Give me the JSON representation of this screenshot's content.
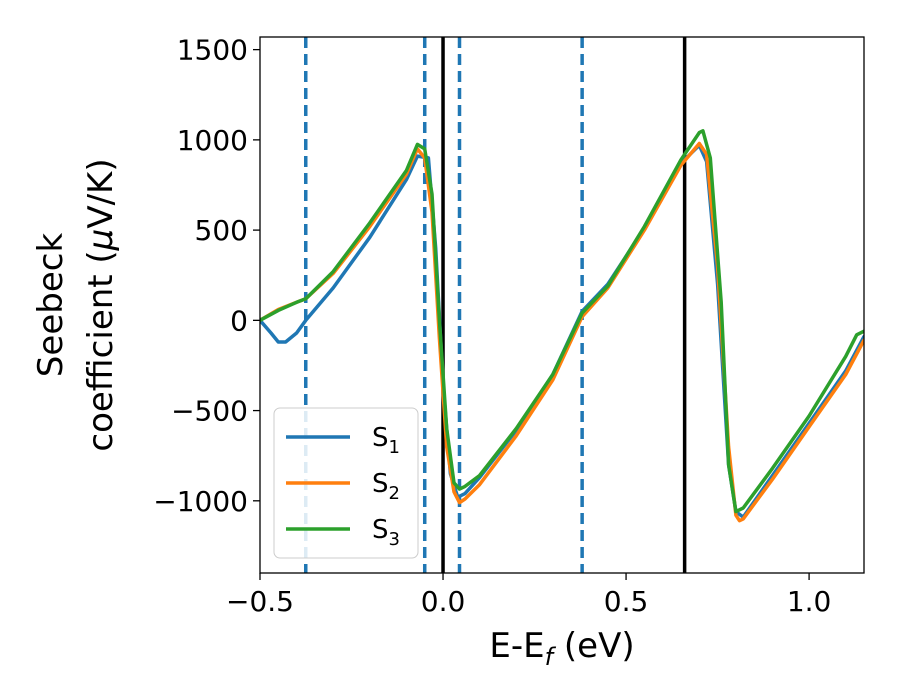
{
  "chart_data": {
    "type": "line",
    "xlabel": "E-E",
    "xlabel_sub": "f",
    "xlabel_unit": " (eV)",
    "ylabel_line1": "Seebeck",
    "ylabel_line2": "coefficient  (",
    "ylabel_mu": "μ",
    "ylabel_unit": "V/K)",
    "xlim": [
      -0.5,
      1.15
    ],
    "ylim": [
      -1400,
      1570
    ],
    "x_ticks": [
      -0.5,
      0.0,
      0.5,
      1.0
    ],
    "x_tick_labels": [
      "−0.5",
      "0.0",
      "0.5",
      "1.0"
    ],
    "y_ticks": [
      -1000,
      -500,
      0,
      500,
      1000,
      1500
    ],
    "y_tick_labels": [
      "−1000",
      "−500",
      "0",
      "500",
      "1000",
      "1500"
    ],
    "grid": false,
    "legend_position": "lower-left",
    "vlines_dashed": {
      "x": [
        -0.375,
        -0.05,
        0.045,
        0.38
      ],
      "color": "#1f77b4"
    },
    "vlines_solid": {
      "x": [
        0.0,
        0.66
      ],
      "color": "#000000"
    },
    "series": [
      {
        "name": "S",
        "sub": "1",
        "color": "#1f77b4",
        "x": [
          -0.5,
          -0.47,
          -0.45,
          -0.43,
          -0.4,
          -0.375,
          -0.3,
          -0.2,
          -0.1,
          -0.07,
          -0.04,
          -0.02,
          0.0,
          0.02,
          0.04,
          0.06,
          0.1,
          0.2,
          0.3,
          0.38,
          0.45,
          0.55,
          0.65,
          0.7,
          0.72,
          0.75,
          0.78,
          0.8,
          0.82,
          0.9,
          1.0,
          1.1,
          1.15
        ],
        "y": [
          0,
          -70,
          -120,
          -120,
          -70,
          0,
          180,
          460,
          780,
          910,
          900,
          400,
          -350,
          -850,
          -980,
          -960,
          -870,
          -610,
          -300,
          50,
          200,
          510,
          870,
          970,
          880,
          200,
          -800,
          -1060,
          -1090,
          -860,
          -570,
          -280,
          -90
        ]
      },
      {
        "name": "S",
        "sub": "2",
        "color": "#ff7f0e",
        "x": [
          -0.5,
          -0.45,
          -0.4,
          -0.375,
          -0.3,
          -0.2,
          -0.1,
          -0.07,
          -0.05,
          -0.03,
          -0.01,
          0.01,
          0.03,
          0.045,
          0.06,
          0.1,
          0.2,
          0.3,
          0.38,
          0.45,
          0.55,
          0.65,
          0.7,
          0.72,
          0.75,
          0.78,
          0.8,
          0.81,
          0.82,
          0.9,
          1.0,
          1.1,
          1.15
        ],
        "y": [
          0,
          60,
          100,
          120,
          260,
          520,
          810,
          950,
          900,
          600,
          -100,
          -700,
          -950,
          -1010,
          -990,
          -910,
          -640,
          -330,
          20,
          180,
          500,
          860,
          980,
          920,
          300,
          -700,
          -1080,
          -1110,
          -1100,
          -880,
          -590,
          -300,
          -110
        ]
      },
      {
        "name": "S",
        "sub": "3",
        "color": "#2ca02c",
        "x": [
          -0.5,
          -0.45,
          -0.4,
          -0.375,
          -0.3,
          -0.2,
          -0.1,
          -0.07,
          -0.05,
          -0.03,
          -0.01,
          0.01,
          0.03,
          0.045,
          0.06,
          0.1,
          0.2,
          0.3,
          0.38,
          0.45,
          0.55,
          0.65,
          0.7,
          0.71,
          0.73,
          0.76,
          0.78,
          0.8,
          0.82,
          0.9,
          1.0,
          1.1,
          1.13,
          1.15
        ],
        "y": [
          0,
          55,
          100,
          120,
          270,
          540,
          830,
          975,
          950,
          700,
          0,
          -600,
          -900,
          -935,
          -920,
          -860,
          -600,
          -300,
          40,
          190,
          520,
          890,
          1040,
          1050,
          900,
          100,
          -800,
          -1060,
          -1040,
          -820,
          -530,
          -200,
          -80,
          -60
        ]
      }
    ]
  }
}
